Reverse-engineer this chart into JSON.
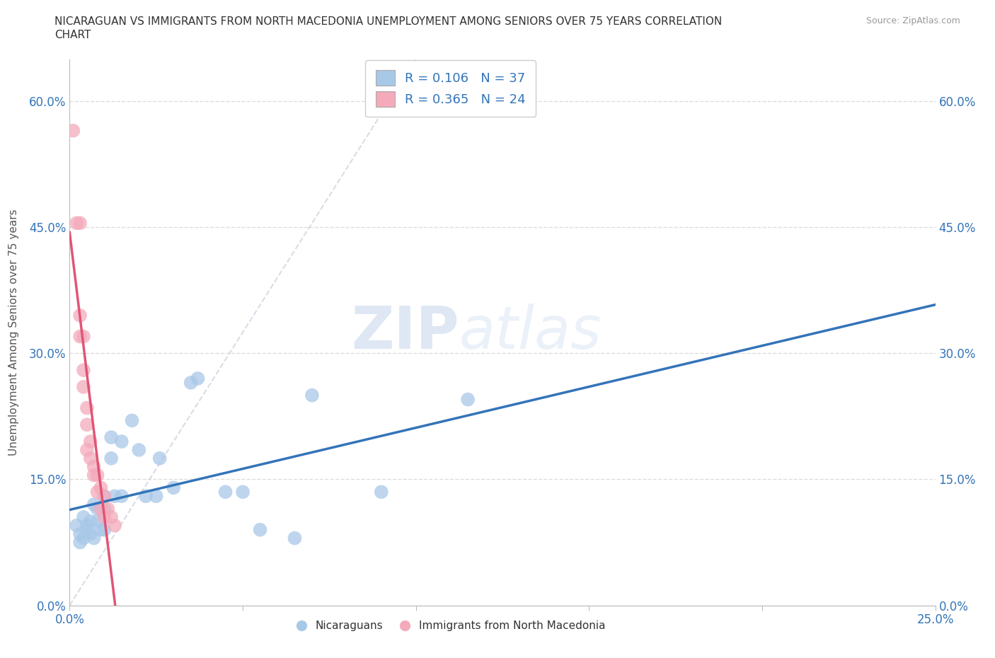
{
  "title_line1": "NICARAGUAN VS IMMIGRANTS FROM NORTH MACEDONIA UNEMPLOYMENT AMONG SENIORS OVER 75 YEARS CORRELATION",
  "title_line2": "CHART",
  "source_text": "Source: ZipAtlas.com",
  "ylabel": "Unemployment Among Seniors over 75 years",
  "xlim": [
    0.0,
    0.25
  ],
  "ylim": [
    0.0,
    0.65
  ],
  "ytick_values": [
    0.0,
    0.15,
    0.3,
    0.45,
    0.6
  ],
  "xtick_values": [
    0.0,
    0.05,
    0.1,
    0.15,
    0.2,
    0.25
  ],
  "xtick_labels": [
    "0.0%",
    "",
    "",
    "",
    "",
    "25.0%"
  ],
  "ytick_labels": [
    "0.0%",
    "15.0%",
    "30.0%",
    "45.0%",
    "60.0%"
  ],
  "blue_R": 0.106,
  "blue_N": 37,
  "pink_R": 0.365,
  "pink_N": 24,
  "legend_labels": [
    "Nicaraguans",
    "Immigrants from North Macedonia"
  ],
  "blue_color": "#a8c8e8",
  "pink_color": "#f4aabb",
  "blue_line_color": "#3374b9",
  "pink_line_color": "#e05575",
  "ref_line_color": "#ccccdd",
  "blue_scatter": [
    [
      0.002,
      0.095
    ],
    [
      0.003,
      0.085
    ],
    [
      0.003,
      0.075
    ],
    [
      0.004,
      0.105
    ],
    [
      0.004,
      0.08
    ],
    [
      0.005,
      0.095
    ],
    [
      0.005,
      0.09
    ],
    [
      0.006,
      0.1
    ],
    [
      0.006,
      0.085
    ],
    [
      0.007,
      0.12
    ],
    [
      0.007,
      0.08
    ],
    [
      0.008,
      0.115
    ],
    [
      0.008,
      0.1
    ],
    [
      0.009,
      0.09
    ],
    [
      0.01,
      0.13
    ],
    [
      0.01,
      0.115
    ],
    [
      0.01,
      0.09
    ],
    [
      0.012,
      0.2
    ],
    [
      0.012,
      0.175
    ],
    [
      0.013,
      0.13
    ],
    [
      0.015,
      0.195
    ],
    [
      0.015,
      0.13
    ],
    [
      0.018,
      0.22
    ],
    [
      0.02,
      0.185
    ],
    [
      0.022,
      0.13
    ],
    [
      0.025,
      0.13
    ],
    [
      0.026,
      0.175
    ],
    [
      0.03,
      0.14
    ],
    [
      0.035,
      0.265
    ],
    [
      0.037,
      0.27
    ],
    [
      0.045,
      0.135
    ],
    [
      0.05,
      0.135
    ],
    [
      0.055,
      0.09
    ],
    [
      0.065,
      0.08
    ],
    [
      0.07,
      0.25
    ],
    [
      0.09,
      0.135
    ],
    [
      0.115,
      0.245
    ]
  ],
  "pink_scatter": [
    [
      0.001,
      0.565
    ],
    [
      0.002,
      0.455
    ],
    [
      0.003,
      0.455
    ],
    [
      0.003,
      0.345
    ],
    [
      0.003,
      0.32
    ],
    [
      0.004,
      0.32
    ],
    [
      0.004,
      0.28
    ],
    [
      0.004,
      0.26
    ],
    [
      0.005,
      0.235
    ],
    [
      0.005,
      0.215
    ],
    [
      0.005,
      0.185
    ],
    [
      0.006,
      0.195
    ],
    [
      0.006,
      0.175
    ],
    [
      0.007,
      0.165
    ],
    [
      0.007,
      0.155
    ],
    [
      0.008,
      0.155
    ],
    [
      0.008,
      0.135
    ],
    [
      0.009,
      0.14
    ],
    [
      0.009,
      0.115
    ],
    [
      0.01,
      0.13
    ],
    [
      0.01,
      0.105
    ],
    [
      0.011,
      0.115
    ],
    [
      0.012,
      0.105
    ],
    [
      0.013,
      0.095
    ]
  ],
  "watermark_zip": "ZIP",
  "watermark_atlas": "atlas",
  "background_color": "#ffffff",
  "grid_color": "#dddddd"
}
